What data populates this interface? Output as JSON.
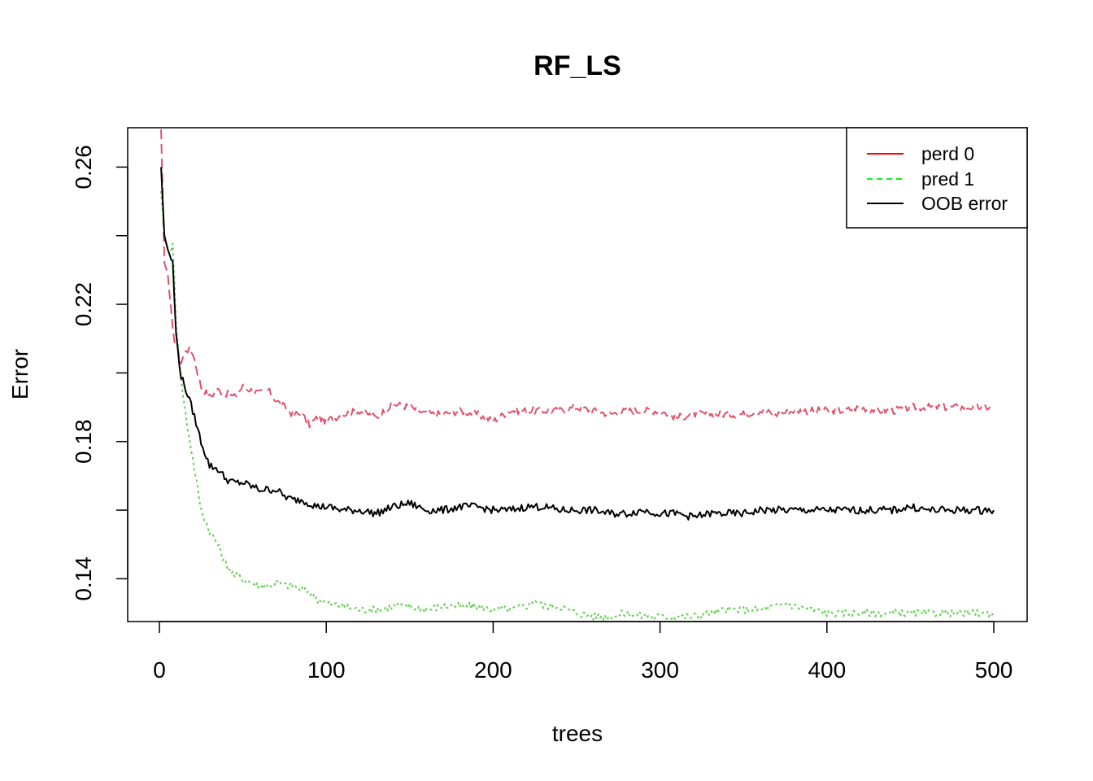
{
  "chart_data": {
    "type": "line",
    "title": "RF_LS",
    "xlabel": "trees",
    "ylabel": "Error",
    "xlim": [
      0,
      500
    ],
    "ylim": [
      0.128,
      0.271
    ],
    "x_ticks": [
      "0",
      "100",
      "200",
      "300",
      "400",
      "500"
    ],
    "y_ticks": [
      "0.14",
      "0.18",
      "0.22",
      "0.26"
    ],
    "legend": {
      "position": "top-right",
      "entries": [
        "perd 0",
        "pred 1",
        "OOB error"
      ]
    },
    "series": [
      {
        "name": "perd 0",
        "color": "#DF536B",
        "legend_color": "#FF0000",
        "dash": "dashed",
        "x": [
          1,
          3,
          5,
          8,
          10,
          13,
          16,
          20,
          25,
          30,
          35,
          40,
          45,
          50,
          55,
          60,
          65,
          70,
          75,
          80,
          85,
          90,
          95,
          100,
          110,
          120,
          130,
          140,
          150,
          160,
          170,
          180,
          190,
          200,
          210,
          220,
          230,
          240,
          250,
          260,
          270,
          280,
          290,
          300,
          310,
          320,
          330,
          340,
          350,
          360,
          370,
          380,
          390,
          400,
          410,
          420,
          430,
          440,
          450,
          460,
          470,
          480,
          490,
          500
        ],
        "values": [
          0.271,
          0.232,
          0.229,
          0.212,
          0.208,
          0.203,
          0.207,
          0.206,
          0.196,
          0.193,
          0.195,
          0.194,
          0.193,
          0.196,
          0.195,
          0.194,
          0.195,
          0.192,
          0.19,
          0.188,
          0.188,
          0.185,
          0.187,
          0.186,
          0.188,
          0.189,
          0.187,
          0.191,
          0.19,
          0.188,
          0.188,
          0.189,
          0.188,
          0.186,
          0.189,
          0.189,
          0.189,
          0.189,
          0.19,
          0.189,
          0.188,
          0.189,
          0.189,
          0.189,
          0.187,
          0.188,
          0.188,
          0.188,
          0.188,
          0.189,
          0.188,
          0.189,
          0.189,
          0.189,
          0.189,
          0.19,
          0.189,
          0.189,
          0.19,
          0.19,
          0.19,
          0.19,
          0.19,
          0.19
        ]
      },
      {
        "name": "pred 1",
        "color": "#61D04F",
        "legend_color": "#00FF00",
        "dash": "dotted",
        "x": [
          1,
          3,
          5,
          8,
          10,
          13,
          16,
          20,
          25,
          30,
          35,
          40,
          45,
          50,
          55,
          60,
          65,
          70,
          75,
          80,
          85,
          90,
          95,
          100,
          110,
          120,
          130,
          140,
          150,
          160,
          170,
          180,
          190,
          200,
          210,
          220,
          225,
          230,
          240,
          250,
          260,
          270,
          280,
          290,
          300,
          310,
          320,
          330,
          340,
          350,
          360,
          370,
          375,
          380,
          390,
          400,
          410,
          420,
          430,
          440,
          450,
          460,
          470,
          480,
          490,
          500
        ],
        "values": [
          0.253,
          0.24,
          0.236,
          0.237,
          0.215,
          0.198,
          0.187,
          0.175,
          0.16,
          0.154,
          0.15,
          0.144,
          0.141,
          0.14,
          0.139,
          0.138,
          0.138,
          0.139,
          0.138,
          0.138,
          0.137,
          0.136,
          0.134,
          0.133,
          0.132,
          0.131,
          0.131,
          0.132,
          0.132,
          0.131,
          0.132,
          0.132,
          0.132,
          0.131,
          0.131,
          0.132,
          0.134,
          0.132,
          0.132,
          0.13,
          0.129,
          0.129,
          0.13,
          0.129,
          0.129,
          0.129,
          0.129,
          0.13,
          0.131,
          0.131,
          0.131,
          0.132,
          0.133,
          0.132,
          0.131,
          0.13,
          0.13,
          0.13,
          0.13,
          0.13,
          0.13,
          0.13,
          0.13,
          0.13,
          0.13,
          0.13
        ]
      },
      {
        "name": "OOB error",
        "color": "#000000",
        "legend_color": "#000000",
        "dash": "solid",
        "x": [
          1,
          3,
          5,
          8,
          10,
          13,
          16,
          20,
          25,
          30,
          35,
          40,
          45,
          50,
          55,
          60,
          65,
          70,
          75,
          80,
          85,
          90,
          95,
          100,
          110,
          120,
          130,
          140,
          150,
          160,
          170,
          180,
          190,
          200,
          210,
          220,
          230,
          240,
          250,
          260,
          270,
          280,
          290,
          300,
          310,
          320,
          330,
          340,
          350,
          360,
          370,
          380,
          390,
          400,
          410,
          420,
          430,
          440,
          450,
          460,
          470,
          480,
          490,
          500
        ],
        "values": [
          0.26,
          0.24,
          0.236,
          0.232,
          0.211,
          0.199,
          0.195,
          0.189,
          0.18,
          0.173,
          0.172,
          0.169,
          0.168,
          0.168,
          0.167,
          0.166,
          0.166,
          0.166,
          0.164,
          0.163,
          0.163,
          0.162,
          0.161,
          0.161,
          0.16,
          0.16,
          0.159,
          0.161,
          0.162,
          0.16,
          0.16,
          0.161,
          0.161,
          0.16,
          0.16,
          0.161,
          0.161,
          0.16,
          0.16,
          0.16,
          0.159,
          0.159,
          0.16,
          0.159,
          0.159,
          0.158,
          0.159,
          0.159,
          0.159,
          0.16,
          0.16,
          0.16,
          0.16,
          0.16,
          0.16,
          0.16,
          0.16,
          0.16,
          0.161,
          0.16,
          0.16,
          0.16,
          0.16,
          0.16
        ]
      }
    ]
  }
}
